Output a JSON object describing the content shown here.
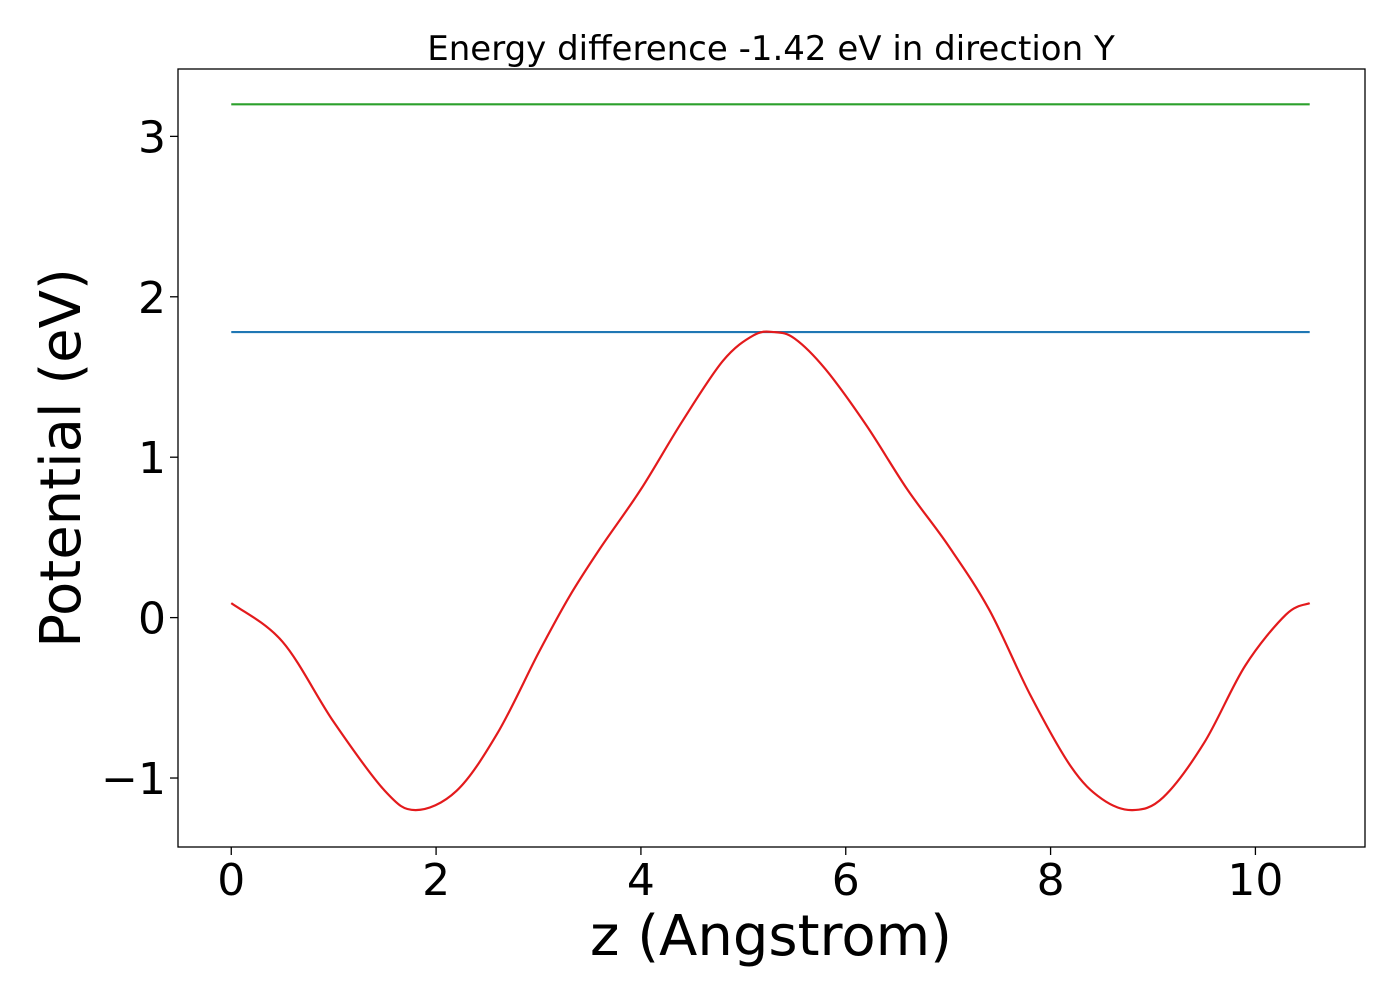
{
  "chart_data": {
    "type": "line",
    "title": "Energy difference -1.42 eV in direction Y",
    "xlabel": "z (Angstrom)",
    "ylabel": "Potential (eV)",
    "xlim": [
      -0.52,
      11.07
    ],
    "ylim": [
      -1.43,
      3.42
    ],
    "xticks": [
      0,
      2,
      4,
      6,
      8,
      10
    ],
    "xtick_labels": [
      "0",
      "2",
      "4",
      "6",
      "8",
      "10"
    ],
    "yticks": [
      -1,
      0,
      1,
      2,
      3
    ],
    "ytick_labels": [
      "−1",
      "0",
      "1",
      "2",
      "3"
    ],
    "grid": false,
    "series": [
      {
        "color": "#2ca02c",
        "x": [
          0,
          10.53
        ],
        "y": [
          3.2,
          3.2
        ]
      },
      {
        "color": "#1f77b4",
        "x": [
          0,
          10.53
        ],
        "y": [
          1.78,
          1.78
        ]
      },
      {
        "color": "#e31a1c",
        "x": [
          0,
          0.5,
          1.0,
          1.5,
          1.8,
          2.2,
          2.6,
          3.0,
          3.3,
          3.6,
          4.0,
          4.4,
          4.8,
          5.1,
          5.3,
          5.5,
          5.8,
          6.2,
          6.6,
          7.0,
          7.4,
          7.8,
          8.2,
          8.5,
          8.8,
          9.1,
          9.5,
          9.9,
          10.3,
          10.53
        ],
        "y": [
          0.09,
          -0.15,
          -0.65,
          -1.08,
          -1.2,
          -1.08,
          -0.72,
          -0.22,
          0.13,
          0.43,
          0.8,
          1.22,
          1.6,
          1.76,
          1.78,
          1.74,
          1.55,
          1.2,
          0.8,
          0.45,
          0.05,
          -0.48,
          -0.93,
          -1.13,
          -1.2,
          -1.12,
          -0.78,
          -0.3,
          0.02,
          0.09
        ]
      }
    ]
  }
}
